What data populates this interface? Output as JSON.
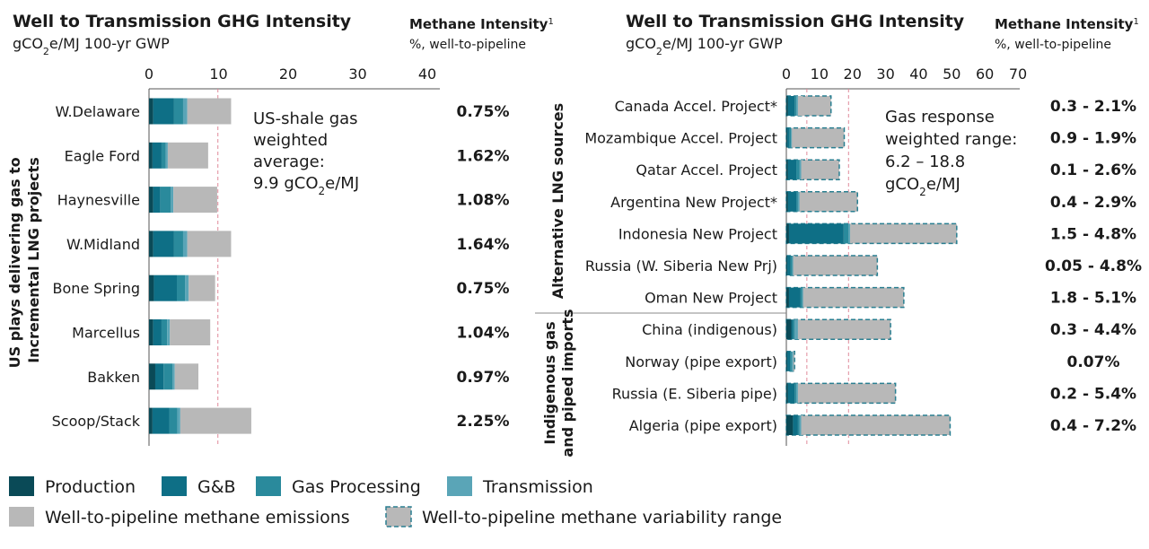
{
  "colors": {
    "production": "#0a4a57",
    "gb": "#0e6f86",
    "processing": "#2a8a9c",
    "transmission": "#5aa5b7",
    "methane": "#b8b8b8",
    "variability_border": "#2a7f91",
    "reference_line": "#e08a9a"
  },
  "chart_data": [
    {
      "type": "bar",
      "stacked": true,
      "orientation": "horizontal",
      "title": "Well to Transmission GHG Intensity",
      "subtitle_prefix": "gCO",
      "subtitle_sub": "2",
      "subtitle_suffix": "e/MJ 100-yr GWP",
      "methane_header": "Methane Intensity",
      "methane_header_sup": "1",
      "methane_subheader": "%, well-to-pipeline",
      "ylabel_line1": "US plays delivering gas to",
      "ylabel_line2": "Incremental LNG projects",
      "xlim": [
        0,
        40
      ],
      "xticks": [
        "0",
        "10",
        "20",
        "30",
        "40"
      ],
      "reference_line": 9.9,
      "annotation": [
        "US-shale gas",
        "weighted",
        "average:",
        "9.9 gCO",
        "2",
        "e/MJ"
      ],
      "categories": [
        "W.Delaware",
        "Eagle Ford",
        "Haynesville",
        "W.Midland",
        "Bone Spring",
        "Marcellus",
        "Bakken",
        "Scoop/Stack"
      ],
      "series": [
        {
          "name": "Production",
          "values": [
            0.6,
            0.5,
            0.6,
            0.6,
            0.7,
            0.6,
            0.9,
            0.5
          ]
        },
        {
          "name": "G&B",
          "values": [
            3.0,
            1.3,
            1.0,
            3.0,
            3.3,
            1.2,
            1.2,
            2.4
          ]
        },
        {
          "name": "Gas Processing",
          "values": [
            1.3,
            0.6,
            1.5,
            1.3,
            1.2,
            0.8,
            1.3,
            1.2
          ]
        },
        {
          "name": "Transmission",
          "values": [
            0.6,
            0.3,
            0.4,
            0.6,
            0.5,
            0.4,
            0.3,
            0.4
          ]
        },
        {
          "name": "Well-to-pipeline methane emissions",
          "values": [
            6.3,
            5.8,
            6.3,
            6.3,
            3.8,
            5.8,
            3.4,
            10.2
          ]
        }
      ],
      "methane_intensity": [
        "0.75%",
        "1.62%",
        "1.08%",
        "1.64%",
        "0.75%",
        "1.04%",
        "0.97%",
        "2.25%"
      ]
    },
    {
      "type": "bar",
      "stacked": true,
      "orientation": "horizontal",
      "title": "Well to Transmission GHG Intensity",
      "subtitle_prefix": "gCO",
      "subtitle_sub": "2",
      "subtitle_suffix": "e/MJ 100-yr GWP",
      "methane_header": "Methane Intensity",
      "methane_header_sup": "1",
      "methane_subheader": "%, well-to-pipeline",
      "group_labels": [
        {
          "lines": [
            "Alternative LNG sources"
          ],
          "rows": [
            0,
            6
          ]
        },
        {
          "lines": [
            "Indigenous gas",
            "and piped imports"
          ],
          "rows": [
            7,
            10
          ]
        }
      ],
      "xlim": [
        0,
        70
      ],
      "xticks": [
        "0",
        "10",
        "20",
        "30",
        "40",
        "50",
        "60",
        "70"
      ],
      "reference_lines": [
        6.2,
        18.8
      ],
      "annotation": [
        "Gas response",
        "weighted range:",
        "6.2 – 18.8",
        "gCO",
        "2",
        "e/MJ"
      ],
      "categories": [
        "Canada Accel. Project*",
        "Mozambique Accel. Project",
        "Qatar Accel. Project",
        "Argentina New Project*",
        "Indonesia New Project",
        "Russia (W. Siberia New Prj)",
        "Oman New Project",
        "China (indigenous)",
        "Norway (pipe export)",
        "Russia (E. Siberia pipe)",
        "Algeria (pipe export)"
      ],
      "series": [
        {
          "name": "Production",
          "values": [
            0.5,
            0.3,
            0.5,
            0.5,
            0.8,
            0.3,
            0.8,
            1.5,
            0.3,
            0.5,
            2.0
          ]
        },
        {
          "name": "G&B",
          "values": [
            2.0,
            0.6,
            2.5,
            2.5,
            16.5,
            1.0,
            3.5,
            0.5,
            0.8,
            2.0,
            1.5
          ]
        },
        {
          "name": "Gas Processing",
          "values": [
            0.5,
            0.5,
            1.0,
            0.5,
            1.5,
            0.5,
            0.5,
            0.5,
            0.5,
            0.5,
            0.5
          ]
        },
        {
          "name": "Transmission",
          "values": [
            0.5,
            0.3,
            0.5,
            0.5,
            0.5,
            0.3,
            0.3,
            1.0,
            0.5,
            0.5,
            0.5
          ]
        },
        {
          "name": "Well-to-pipeline methane emissions",
          "values": [
            1.5,
            0.5,
            0.5,
            0.5,
            0.5,
            0.5,
            0.5,
            0.5,
            0.2,
            0.5,
            0.5
          ]
        }
      ],
      "variability_end": [
        13.5,
        17.5,
        16.0,
        21.5,
        51.5,
        27.5,
        35.5,
        31.5,
        2.5,
        33.0,
        49.5
      ],
      "methane_intensity": [
        "0.3 - 2.1%",
        "0.9 - 1.9%",
        "0.1 - 2.6%",
        "0.4 - 2.9%",
        "1.5 - 4.8%",
        "0.05 - 4.8%",
        "1.8 - 5.1%",
        "0.3 - 4.4%",
        "0.07%",
        "0.2 - 5.4%",
        "0.4 - 7.2%"
      ]
    }
  ],
  "legend": [
    {
      "label": "Production",
      "style": "production"
    },
    {
      "label": "G&B",
      "style": "gb"
    },
    {
      "label": "Gas Processing",
      "style": "processing"
    },
    {
      "label": "Transmission",
      "style": "transmission"
    },
    {
      "label": "Well-to-pipeline methane emissions",
      "style": "methane"
    },
    {
      "label": "Well-to-pipeline methane variability range",
      "style": "variability"
    }
  ]
}
